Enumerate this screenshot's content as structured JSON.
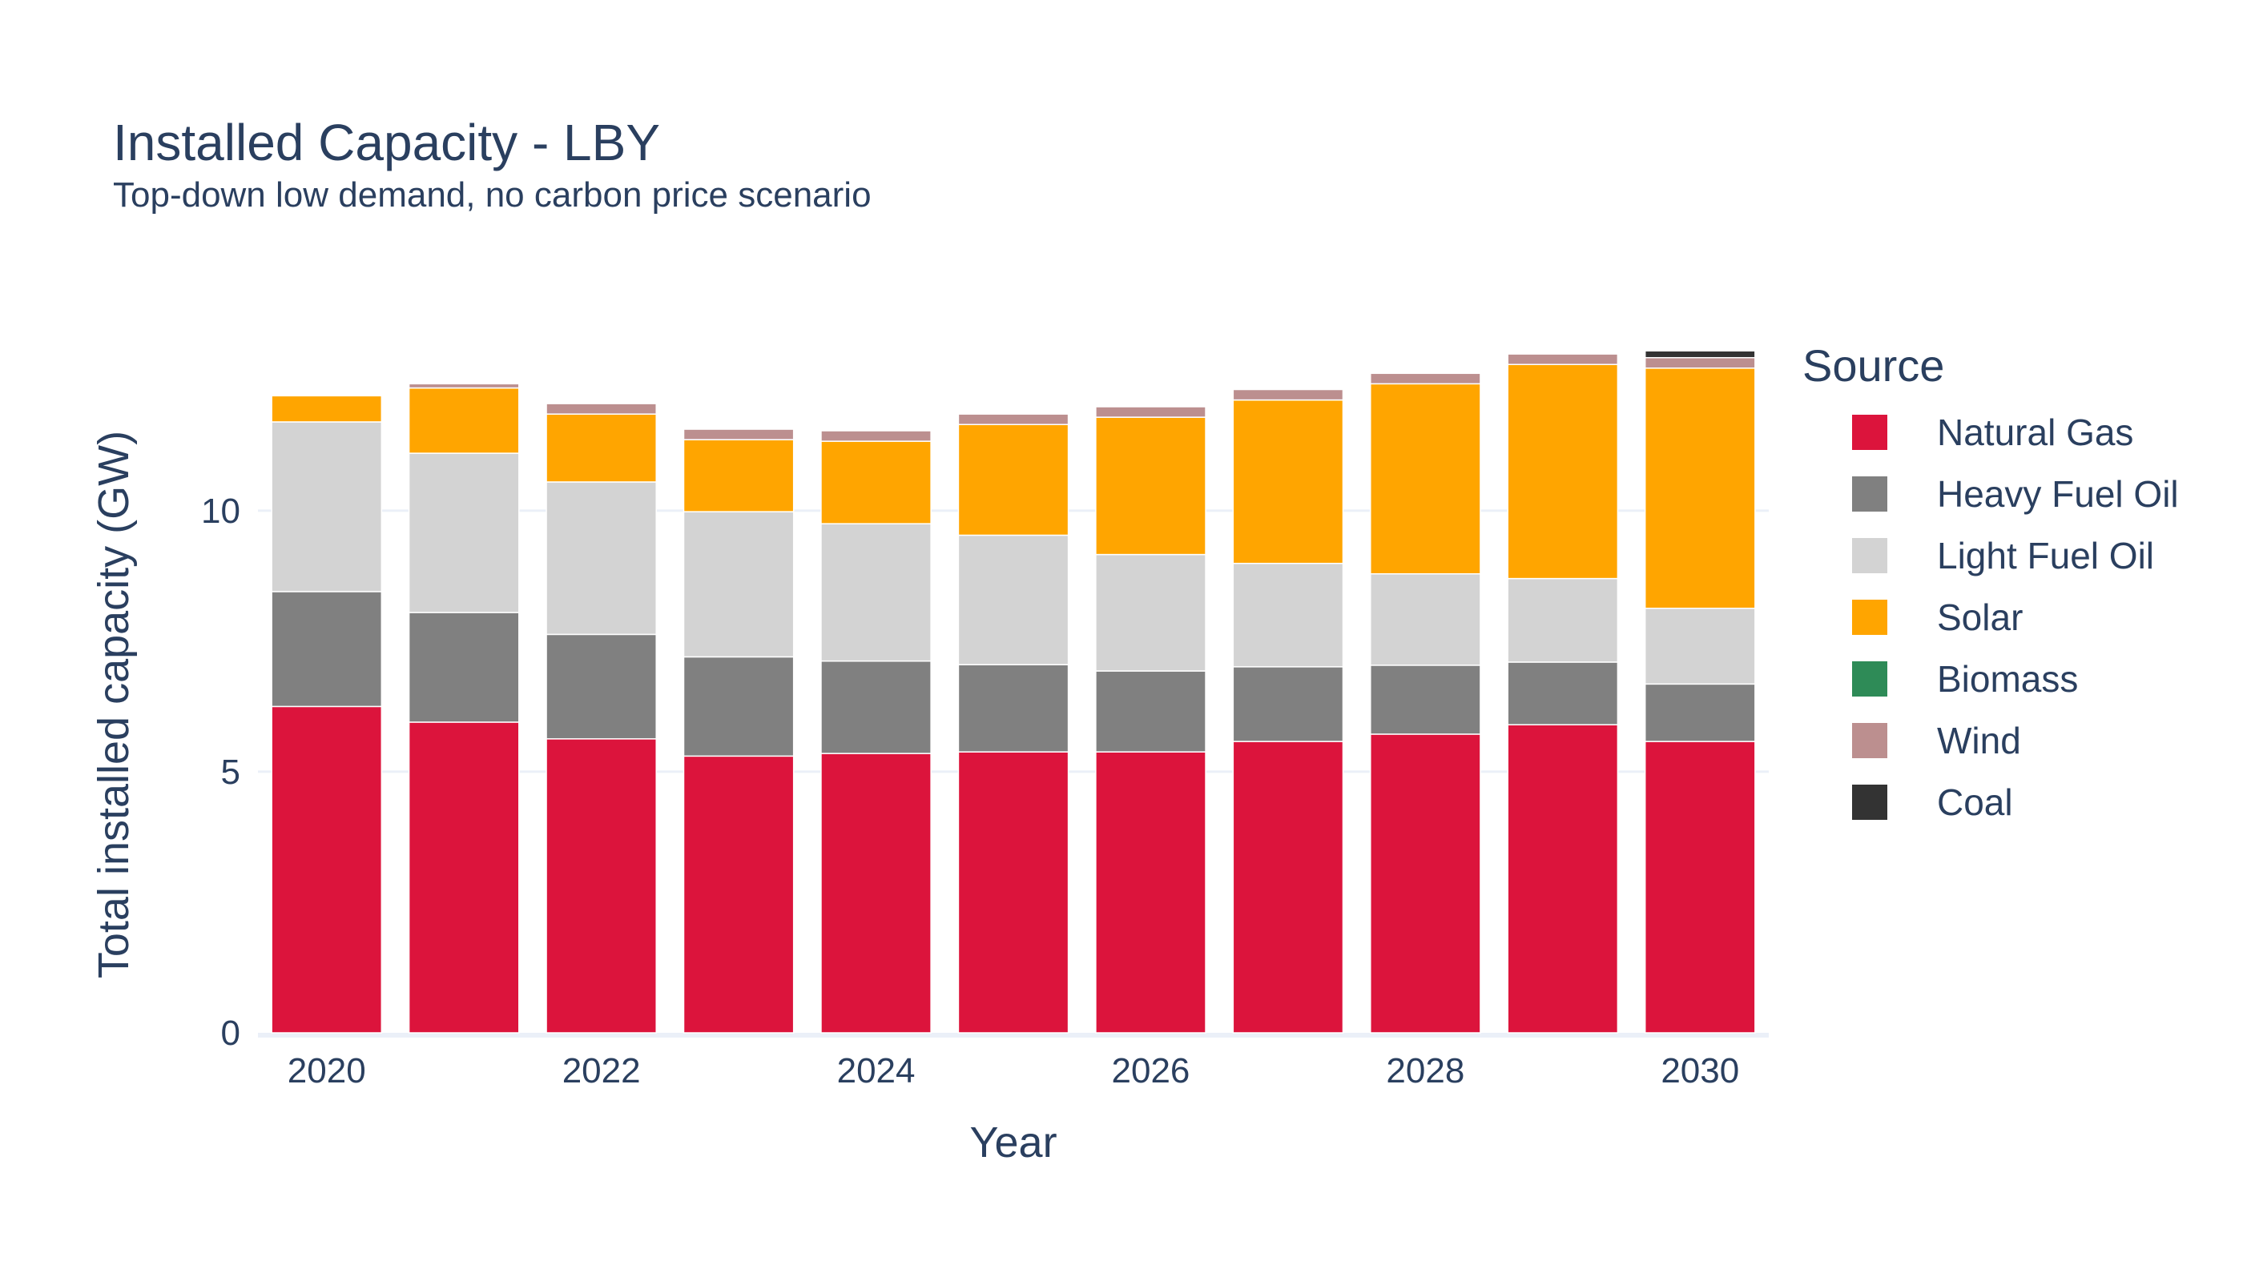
{
  "chart_data": {
    "type": "bar",
    "barmode": "stack",
    "title": "Installed Capacity - LBY",
    "subtitle": "Top-down low demand, no carbon price scenario",
    "xlabel": "Year",
    "ylabel": "Total installed capacity (GW)",
    "x": [
      2020,
      2021,
      2022,
      2023,
      2024,
      2025,
      2026,
      2027,
      2028,
      2029,
      2030
    ],
    "x_tick_labels": [
      "2020",
      "2022",
      "2024",
      "2026",
      "2028",
      "2030"
    ],
    "x_tick_values": [
      2020,
      2022,
      2024,
      2026,
      2028,
      2030
    ],
    "y_tick_labels": [
      "0",
      "5",
      "10"
    ],
    "y_tick_values": [
      0,
      5,
      10
    ],
    "ylim": [
      0,
      13.8
    ],
    "grid": true,
    "legend_title": "Source",
    "legend_position": "right",
    "series": [
      {
        "name": "Natural Gas",
        "color": "#dc143c",
        "values": [
          6.25,
          5.95,
          5.63,
          5.3,
          5.35,
          5.38,
          5.38,
          5.58,
          5.72,
          5.9,
          5.58
        ]
      },
      {
        "name": "Heavy Fuel Oil",
        "color": "#808080",
        "values": [
          2.2,
          2.1,
          2.0,
          1.9,
          1.77,
          1.67,
          1.55,
          1.43,
          1.32,
          1.2,
          1.1
        ]
      },
      {
        "name": "Light Fuel Oil",
        "color": "#d3d3d3",
        "values": [
          3.25,
          3.05,
          2.92,
          2.78,
          2.63,
          2.48,
          2.23,
          1.98,
          1.75,
          1.6,
          1.45
        ]
      },
      {
        "name": "Solar",
        "color": "#ffa500",
        "values": [
          0.5,
          1.25,
          1.3,
          1.38,
          1.58,
          2.12,
          2.63,
          3.13,
          3.64,
          4.1,
          4.6
        ]
      },
      {
        "name": "Biomass",
        "color": "#2e8b57",
        "values": [
          0,
          0,
          0,
          0,
          0,
          0,
          0,
          0,
          0,
          0,
          0
        ]
      },
      {
        "name": "Wind",
        "color": "#bc8f8f",
        "values": [
          0,
          0.08,
          0.2,
          0.2,
          0.2,
          0.2,
          0.2,
          0.2,
          0.2,
          0.2,
          0.2
        ]
      },
      {
        "name": "Coal",
        "color": "#333333",
        "values": [
          0,
          0,
          0,
          0,
          0,
          0,
          0,
          0,
          0,
          0,
          0.13
        ]
      }
    ]
  }
}
